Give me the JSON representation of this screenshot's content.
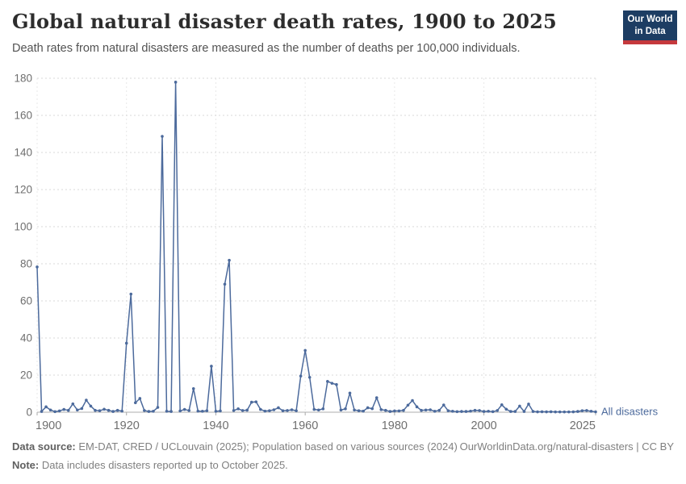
{
  "header": {
    "title": "Global natural disaster death rates, 1900 to 2025",
    "subtitle": "Death rates from natural disasters are measured as the number of deaths per 100,000 individuals."
  },
  "logo": {
    "line1": "Our World",
    "line2": "in Data",
    "bg_color": "#1d3d63",
    "bar_color": "#c5393d"
  },
  "footer": {
    "source_label": "Data source:",
    "source_text": " EM-DAT, CRED / UCLouvain (2025); Population based on various sources (2024)",
    "right_text": "OurWorldinData.org/natural-disasters | CC BY",
    "note_label": "Note:",
    "note_text": " Data includes disasters reported up to October 2025."
  },
  "chart_data": {
    "type": "line",
    "title": "Global natural disaster death rates, 1900 to 2025",
    "xlabel": "",
    "ylabel": "deaths per 100,000 individuals",
    "x_start": 1900,
    "x_end": 2025,
    "x_step": 1,
    "xlim": [
      1900,
      2025
    ],
    "ylim": [
      0,
      180
    ],
    "x_ticks": [
      1900,
      1920,
      1940,
      1960,
      1980,
      2000,
      2025
    ],
    "y_ticks": [
      0,
      20,
      40,
      60,
      80,
      100,
      120,
      140,
      160,
      180
    ],
    "grid": "horizontal-dashed-and-vertical-dashed-at-ticks",
    "legend_position": "end-of-line-label",
    "colors": {
      "line": "#4C6A9C",
      "gridline": "#d9d9d9",
      "axis": "#a8a8a8",
      "tick_label": "#6f6f6f"
    },
    "series": [
      {
        "name": "All disasters",
        "color": "#4C6A9C",
        "values": [
          78.3,
          0.4,
          2.9,
          1.2,
          0.3,
          0.7,
          1.5,
          1.0,
          4.5,
          1.2,
          2.0,
          6.5,
          3.3,
          1.0,
          0.8,
          1.6,
          1.0,
          0.4,
          1.0,
          0.6,
          37.2,
          63.7,
          5.1,
          7.4,
          0.9,
          0.4,
          0.5,
          2.6,
          148.7,
          0.5,
          0.4,
          177.9,
          0.7,
          1.5,
          0.9,
          12.7,
          0.6,
          0.5,
          0.8,
          24.8,
          0.5,
          0.7,
          69.0,
          81.9,
          0.9,
          1.8,
          0.9,
          1.1,
          5.4,
          5.6,
          1.5,
          0.6,
          0.8,
          1.3,
          2.4,
          0.8,
          0.9,
          1.3,
          0.8,
          19.5,
          33.3,
          18.8,
          1.5,
          1.2,
          1.8,
          16.6,
          15.6,
          14.9,
          1.2,
          1.8,
          10.3,
          1.2,
          0.8,
          0.6,
          2.4,
          1.9,
          7.8,
          1.4,
          1.0,
          0.4,
          0.7,
          0.7,
          1.0,
          3.8,
          6.3,
          2.9,
          1.0,
          1.2,
          1.3,
          0.5,
          1.0,
          3.9,
          0.8,
          0.5,
          0.3,
          0.4,
          0.4,
          0.6,
          1.0,
          0.9,
          0.4,
          0.5,
          0.3,
          0.9,
          4.0,
          1.6,
          0.4,
          0.4,
          3.3,
          0.4,
          4.4,
          0.4,
          0.2,
          0.25,
          0.2,
          0.25,
          0.15,
          0.15,
          0.15,
          0.15,
          0.2,
          0.4,
          0.8,
          0.9,
          0.5,
          0.2
        ]
      }
    ]
  }
}
